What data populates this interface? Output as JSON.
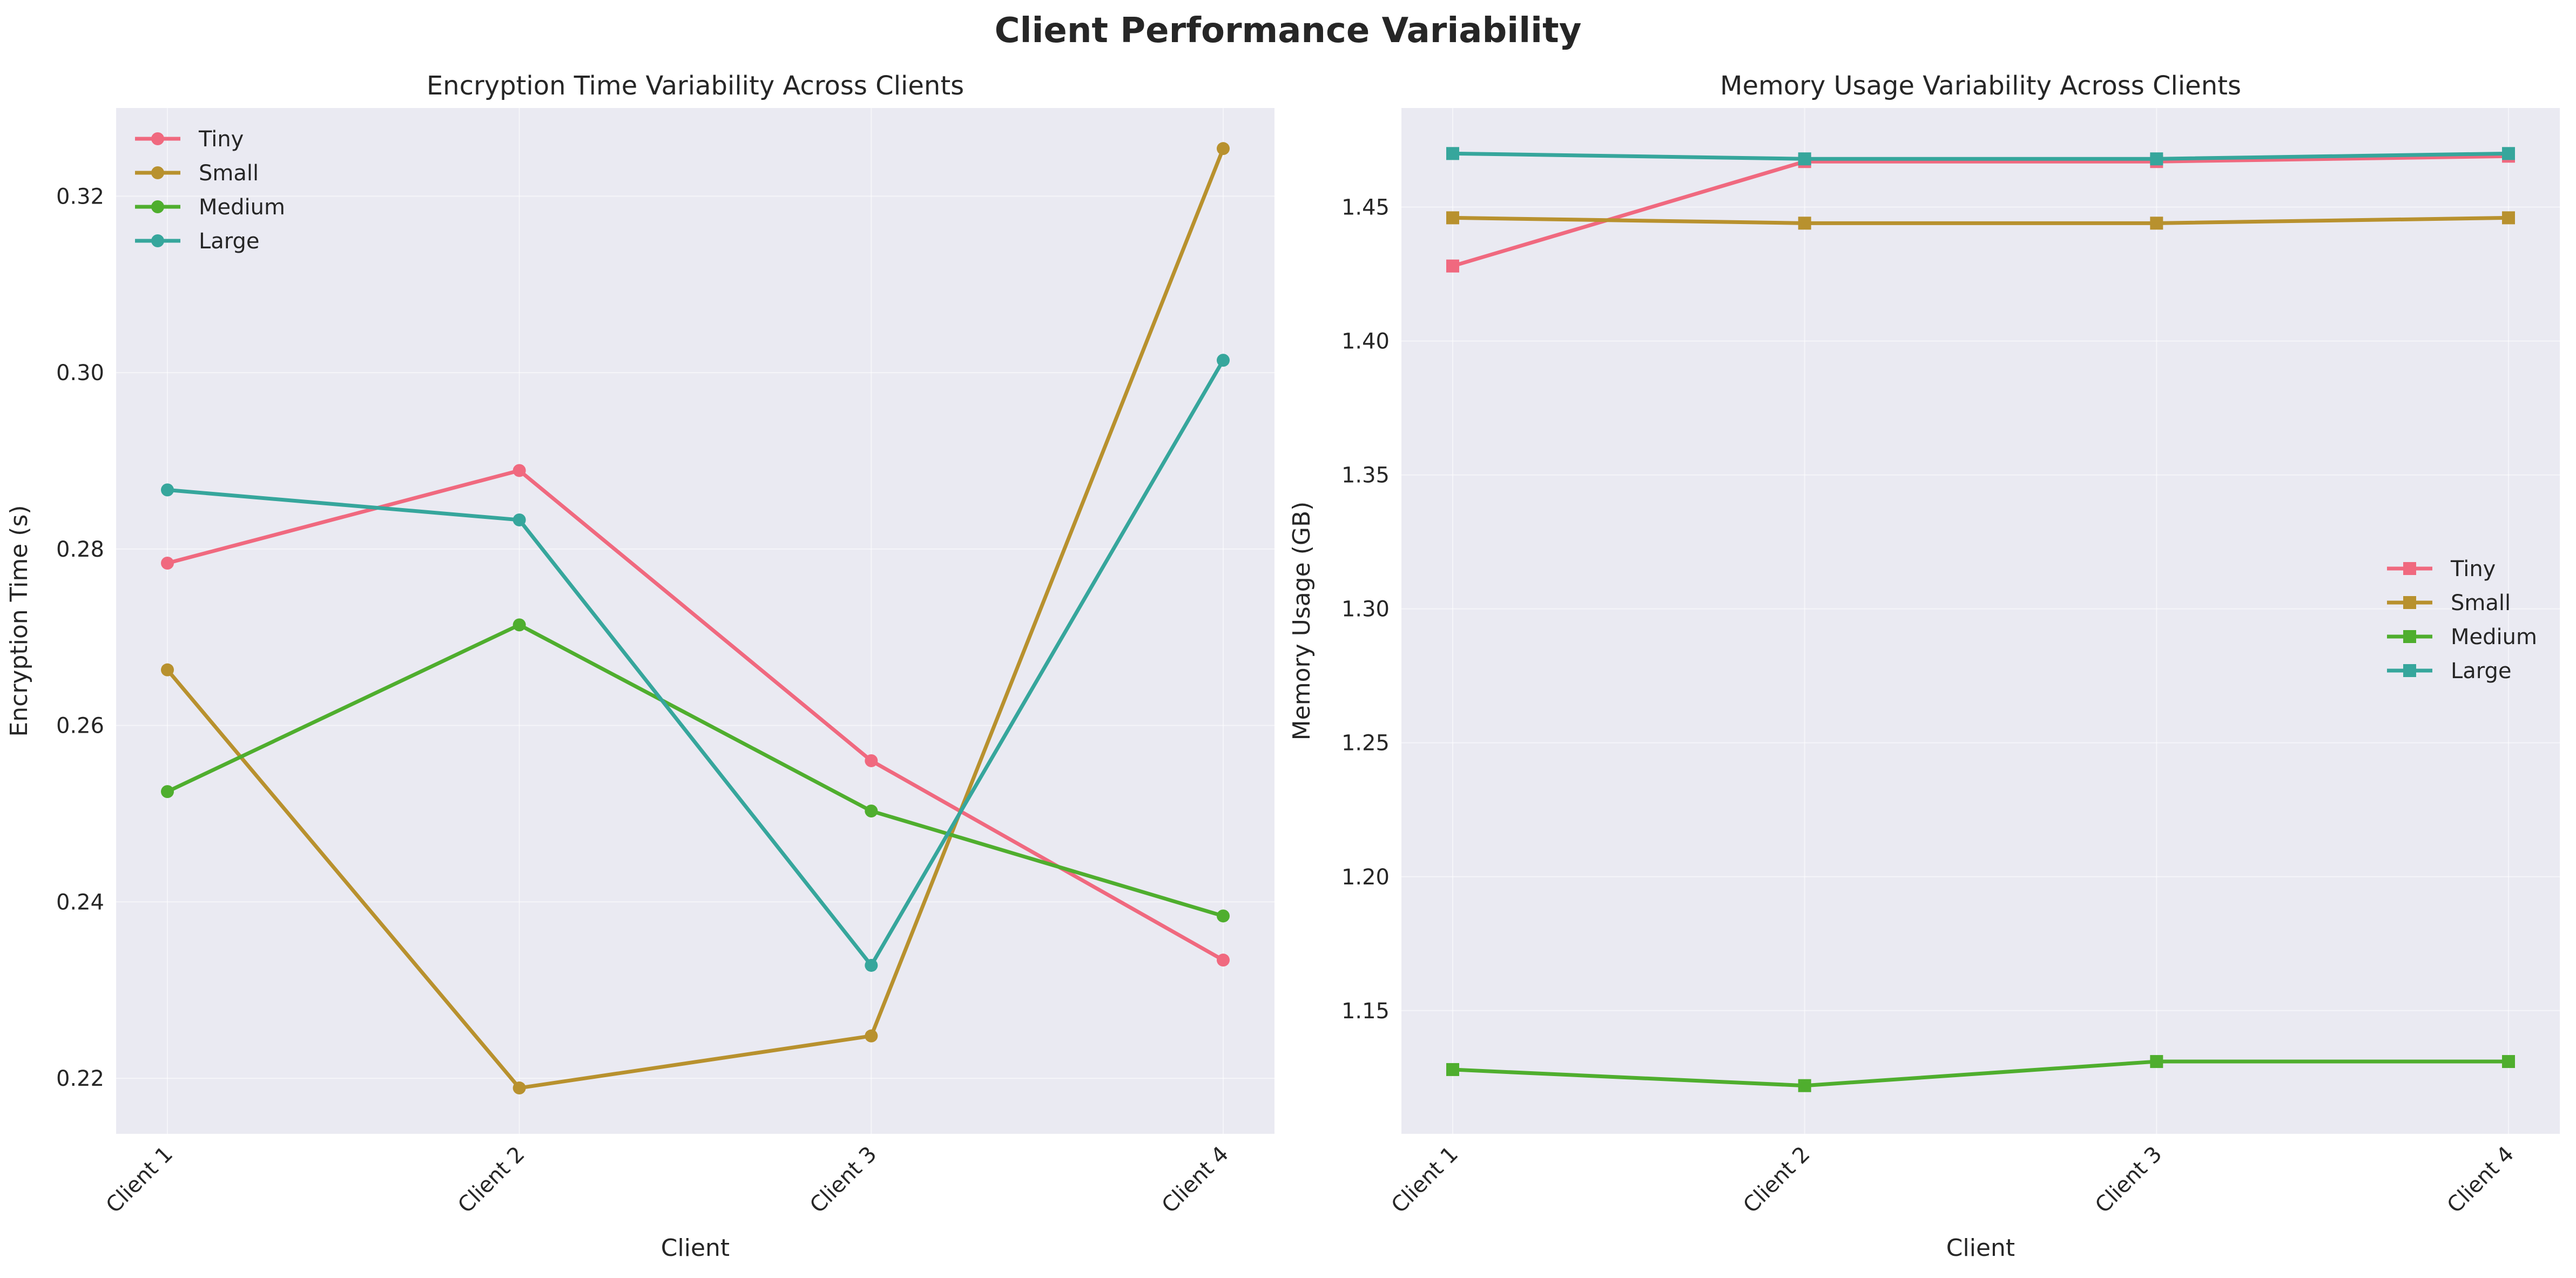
{
  "figure": {
    "title": "Client Performance Variability"
  },
  "colors": {
    "Tiny": "#f0697f",
    "Small": "#b8912e",
    "Medium": "#4fae2e",
    "Large": "#36a69c"
  },
  "chart_data": [
    {
      "type": "line",
      "title": "Encryption Time Variability Across Clients",
      "xlabel": "Client",
      "ylabel": "Encryption Time (s)",
      "categories": [
        "Client 1",
        "Client 2",
        "Client 3",
        "Client 4"
      ],
      "ylim": [
        0.2137,
        0.33
      ],
      "yticks": [
        0.22,
        0.24,
        0.26,
        0.28,
        0.3,
        0.32
      ],
      "ytick_labels": [
        "0.22",
        "0.24",
        "0.26",
        "0.28",
        "0.30",
        "0.32"
      ],
      "marker": "circle",
      "grid": true,
      "legend": "upper-left",
      "series": [
        {
          "name": "Tiny",
          "values": [
            0.2784,
            0.2889,
            0.256,
            0.2334
          ]
        },
        {
          "name": "Small",
          "values": [
            0.2663,
            0.2189,
            0.2248,
            0.3254
          ]
        },
        {
          "name": "Medium",
          "values": [
            0.2525,
            0.2714,
            0.2503,
            0.2384
          ]
        },
        {
          "name": "Large",
          "values": [
            0.2867,
            0.2833,
            0.2328,
            0.3014
          ]
        }
      ]
    },
    {
      "type": "line",
      "title": "Memory Usage Variability Across Clients",
      "xlabel": "Client",
      "ylabel": "Memory Usage (GB)",
      "categories": [
        "Client 1",
        "Client 2",
        "Client 3",
        "Client 4"
      ],
      "ylim": [
        1.104,
        1.487
      ],
      "yticks": [
        1.15,
        1.2,
        1.25,
        1.3,
        1.35,
        1.4,
        1.45
      ],
      "ytick_labels": [
        "1.15",
        "1.20",
        "1.25",
        "1.30",
        "1.35",
        "1.40",
        "1.45"
      ],
      "marker": "square",
      "grid": true,
      "legend": "center-right",
      "series": [
        {
          "name": "Tiny",
          "values": [
            1.428,
            1.467,
            1.467,
            1.469
          ]
        },
        {
          "name": "Small",
          "values": [
            1.446,
            1.444,
            1.444,
            1.446
          ]
        },
        {
          "name": "Medium",
          "values": [
            1.128,
            1.122,
            1.131,
            1.131
          ]
        },
        {
          "name": "Large",
          "values": [
            1.47,
            1.468,
            1.468,
            1.47
          ]
        }
      ]
    }
  ]
}
